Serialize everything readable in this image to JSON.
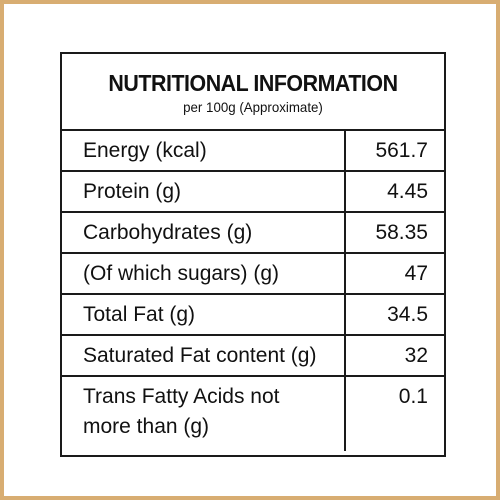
{
  "header": {
    "title": "NUTRITIONAL INFORMATION",
    "subtitle": "per 100g (Approximate)"
  },
  "rows": [
    {
      "label": "Energy (kcal)",
      "value": "561.7"
    },
    {
      "label": "Protein (g)",
      "value": "4.45"
    },
    {
      "label": "Carbohydrates (g)",
      "value": "58.35"
    },
    {
      "label": "(Of which sugars) (g)",
      "value": "47"
    },
    {
      "label": "Total Fat (g)",
      "value": "34.5"
    },
    {
      "label": "Saturated Fat content (g)",
      "value": "32"
    },
    {
      "label_line1": "Trans Fatty Acids not",
      "label_line2": "more than (g)",
      "value": "0.1"
    }
  ],
  "colors": {
    "frame_border": "#d8ad72",
    "table_border": "#1a1a1a",
    "text": "#111111",
    "background": "#ffffff"
  }
}
